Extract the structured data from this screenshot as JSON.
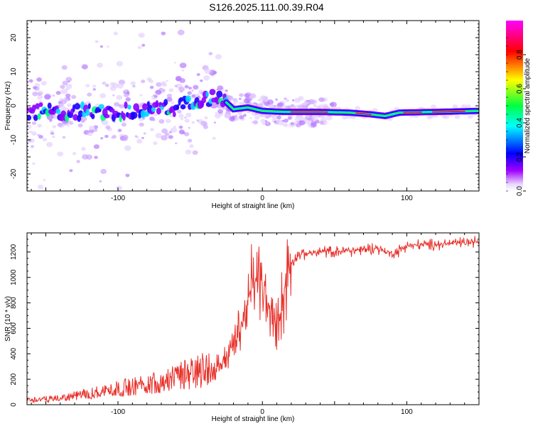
{
  "title": "S126.2025.111.00.39.R04",
  "chart_data": [
    {
      "type": "heatmap",
      "name": "spectrogram",
      "xlabel": "Height of straight line (km)",
      "ylabel": "Frequency (Hz)",
      "xlim": [
        -163,
        150
      ],
      "ylim": [
        -25,
        25
      ],
      "xticks": [
        -100,
        0,
        100
      ],
      "yticks": [
        -20,
        -10,
        0,
        10,
        20
      ],
      "colorbar": {
        "label": "Normalized spectral amplitude",
        "range": [
          0,
          1
        ],
        "ticks": [
          0.0,
          0.2,
          0.4,
          0.6,
          0.8
        ]
      },
      "ridge": [
        {
          "x": -163,
          "f": -1.5
        },
        {
          "x": -100,
          "f": -2.0
        },
        {
          "x": -60,
          "f": -0.5
        },
        {
          "x": -35,
          "f": 2.5
        },
        {
          "x": -25,
          "f": 1.0
        },
        {
          "x": -20,
          "f": -1.0
        },
        {
          "x": -10,
          "f": -0.5
        },
        {
          "x": 0,
          "f": -1.5
        },
        {
          "x": 15,
          "f": -1.8
        },
        {
          "x": 40,
          "f": -1.8
        },
        {
          "x": 60,
          "f": -2.0
        },
        {
          "x": 75,
          "f": -2.5
        },
        {
          "x": 85,
          "f": -3.0
        },
        {
          "x": 95,
          "f": -2.0
        },
        {
          "x": 120,
          "f": -1.8
        },
        {
          "x": 150,
          "f": -1.5
        }
      ]
    },
    {
      "type": "line",
      "name": "snr",
      "xlabel": "Height of straight line (km)",
      "ylabel": "SNR (10 * v/v)",
      "xlim": [
        -163,
        150
      ],
      "ylim": [
        0,
        1350
      ],
      "xticks": [
        -100,
        0,
        100
      ],
      "yticks": [
        0,
        200,
        400,
        600,
        800,
        1000,
        1200
      ],
      "color": "#e8302a",
      "trend": [
        {
          "x": -163,
          "y": 30
        },
        {
          "x": -140,
          "y": 40
        },
        {
          "x": -120,
          "y": 70
        },
        {
          "x": -100,
          "y": 100
        },
        {
          "x": -80,
          "y": 130
        },
        {
          "x": -60,
          "y": 170
        },
        {
          "x": -45,
          "y": 210
        },
        {
          "x": -35,
          "y": 250
        },
        {
          "x": -25,
          "y": 380
        },
        {
          "x": -15,
          "y": 600
        },
        {
          "x": -8,
          "y": 900
        },
        {
          "x": -3,
          "y": 1000
        },
        {
          "x": 2,
          "y": 850
        },
        {
          "x": 8,
          "y": 650
        },
        {
          "x": 13,
          "y": 750
        },
        {
          "x": 18,
          "y": 1100
        },
        {
          "x": 25,
          "y": 1180
        },
        {
          "x": 40,
          "y": 1200
        },
        {
          "x": 60,
          "y": 1210
        },
        {
          "x": 80,
          "y": 1230
        },
        {
          "x": 90,
          "y": 1180
        },
        {
          "x": 100,
          "y": 1250
        },
        {
          "x": 120,
          "y": 1260
        },
        {
          "x": 150,
          "y": 1280
        }
      ]
    }
  ]
}
